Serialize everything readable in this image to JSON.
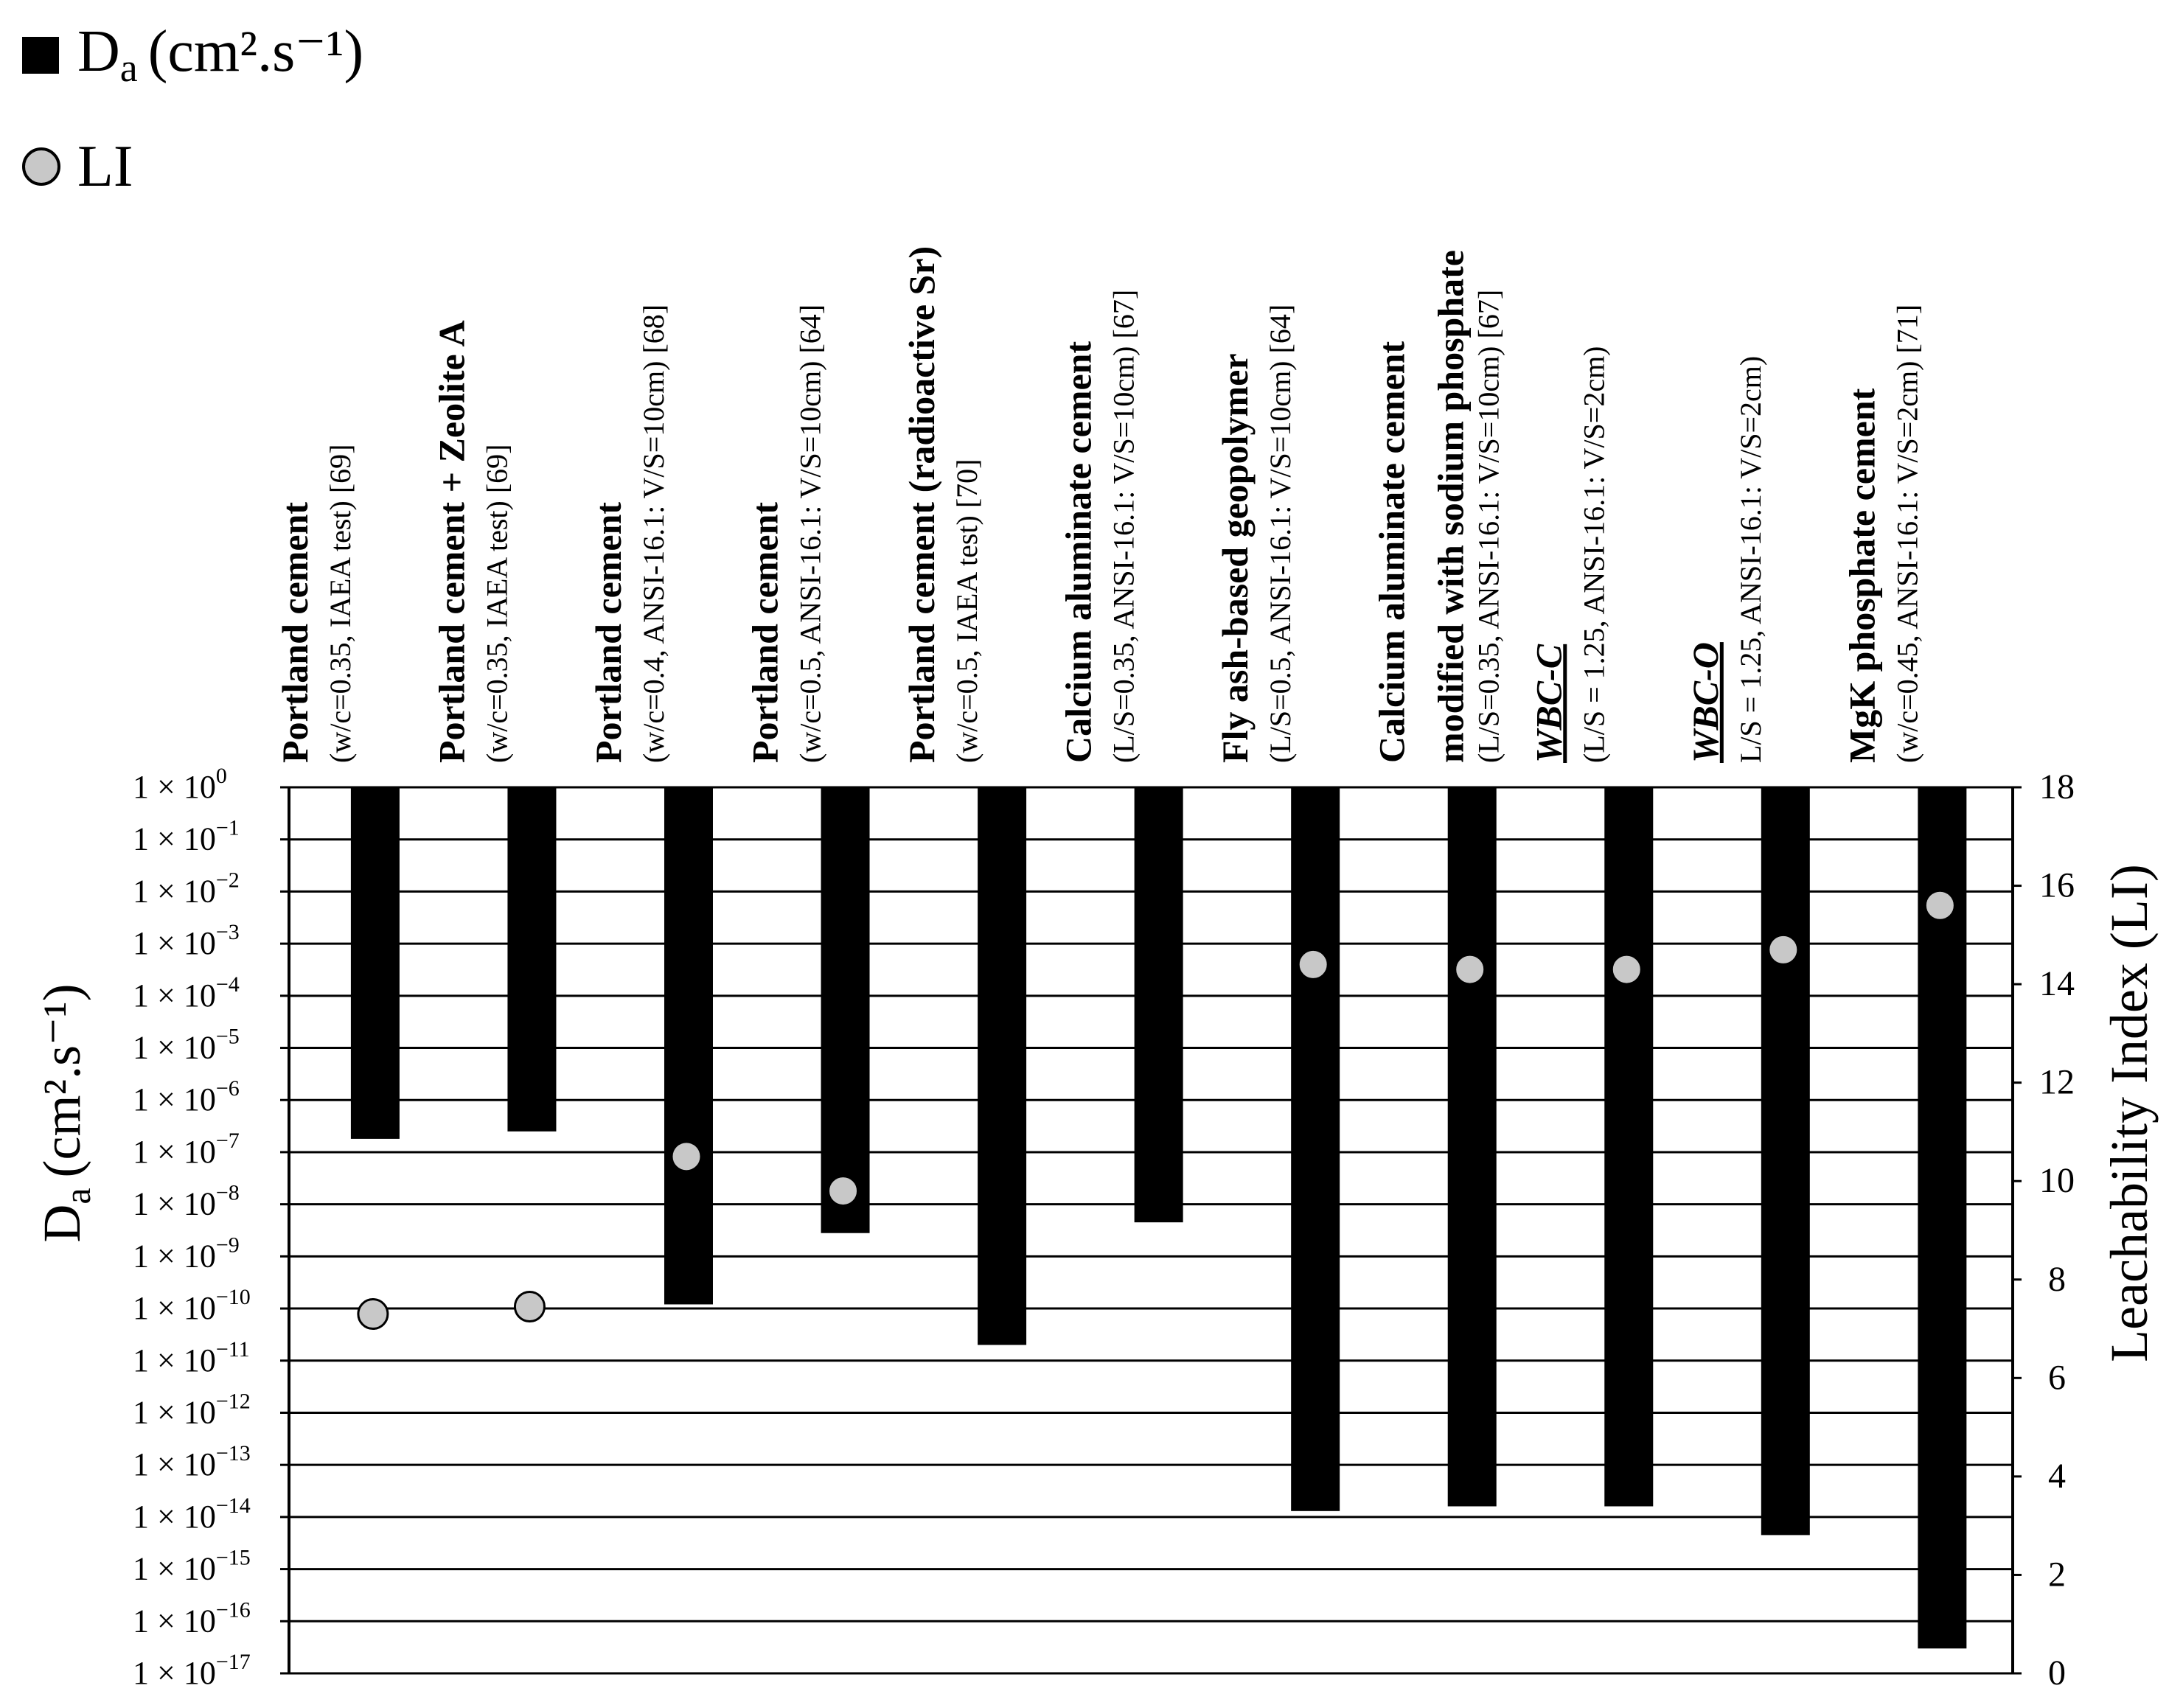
{
  "chart_data": {
    "type": "bar",
    "title": "",
    "legend": {
      "position": "top-left",
      "items": [
        {
          "marker": "square",
          "color": "#000000",
          "label_main": "D",
          "label_sub": "a",
          "label_rest": "(cm².s⁻¹)"
        },
        {
          "marker": "circle",
          "color": "#c8c8c8",
          "label_main": "LI",
          "label_sub": "",
          "label_rest": ""
        }
      ]
    },
    "y_left": {
      "label_main": "D",
      "label_sub": "a",
      "label_rest": "(cm².s⁻¹)",
      "scale": "log",
      "range": [
        1e-17,
        1
      ],
      "ticks": [
        {
          "mantissa": "1 × 10",
          "exp": "0"
        },
        {
          "mantissa": "1 × 10",
          "exp": "−1"
        },
        {
          "mantissa": "1 × 10",
          "exp": "−2"
        },
        {
          "mantissa": "1 × 10",
          "exp": "−3"
        },
        {
          "mantissa": "1 × 10",
          "exp": "−4"
        },
        {
          "mantissa": "1 × 10",
          "exp": "−5"
        },
        {
          "mantissa": "1 × 10",
          "exp": "−6"
        },
        {
          "mantissa": "1 × 10",
          "exp": "−7"
        },
        {
          "mantissa": "1 × 10",
          "exp": "−8"
        },
        {
          "mantissa": "1 × 10",
          "exp": "−9"
        },
        {
          "mantissa": "1 × 10",
          "exp": "−10"
        },
        {
          "mantissa": "1 × 10",
          "exp": "−11"
        },
        {
          "mantissa": "1 × 10",
          "exp": "−12"
        },
        {
          "mantissa": "1 × 10",
          "exp": "−13"
        },
        {
          "mantissa": "1 × 10",
          "exp": "−14"
        },
        {
          "mantissa": "1 × 10",
          "exp": "−15"
        },
        {
          "mantissa": "1 × 10",
          "exp": "−16"
        },
        {
          "mantissa": "1 × 10",
          "exp": "−17"
        }
      ]
    },
    "y_right": {
      "label": "Leachability Index (LI)",
      "range": [
        0,
        18
      ],
      "ticks": [
        "0",
        "2",
        "4",
        "6",
        "8",
        "10",
        "12",
        "14",
        "16",
        "18"
      ]
    },
    "grid": true,
    "categories": [
      {
        "title": "Portland cement",
        "title_style": "bold",
        "detail": "(w/c=0.35, IAEA test) [69]",
        "extra": ""
      },
      {
        "title": "Portland cement + Zeolite A",
        "title_style": "bold",
        "detail": "(w/c=0.35, IAEA test) [69]",
        "extra": ""
      },
      {
        "title": "Portland cement",
        "title_style": "bold",
        "detail": "(w/c=0.4, ANSI-16.1: V/S=10cm) [68]",
        "extra": ""
      },
      {
        "title": "Portland cement",
        "title_style": "bold",
        "detail": "(w/c=0.5, ANSI-16.1: V/S=10cm) [64]",
        "extra": ""
      },
      {
        "title": "Portland cement (radioactive Sr)",
        "title_style": "bold",
        "detail": "(w/c=0.5, IAEA test) [70]",
        "extra": ""
      },
      {
        "title": "Calcium aluminate cement",
        "title_style": "bold",
        "detail": "(L/S=0.35, ANSI-16.1: V/S=10cm) [67]",
        "extra": ""
      },
      {
        "title": "Fly ash-based geopolymer",
        "title_style": "bold",
        "detail": "(L/S=0.5, ANSI-16.1: V/S=10cm) [64]",
        "extra": ""
      },
      {
        "title": "Calcium aluminate cement",
        "title_style": "bold",
        "detail": "modified with sodium phosphate",
        "extra": "(L/S=0.35, ANSI-16.1: V/S=10cm) [67]"
      },
      {
        "title": "WBC-C",
        "title_style": "bold-italic-underline",
        "detail": "(L/S = 1.25, ANSI-16.1: V/S=2cm)",
        "extra": ""
      },
      {
        "title": "WBC-O",
        "title_style": "bold-italic-underline",
        "detail": "L/S = 1.25, ANSI-16.1: V/S=2cm)",
        "extra": ""
      },
      {
        "title": "MgK phosphate cement",
        "title_style": "bold",
        "detail": "(w/c=0.45, ANSI-16.1: V/S=2cm) [71]",
        "extra": ""
      }
    ],
    "series": [
      {
        "name": "Da (cm².s⁻¹)",
        "type": "bar",
        "color": "#000000",
        "values": [
          1.8e-07,
          2.5e-07,
          1.2e-10,
          2.8e-09,
          2e-11,
          4.5e-09,
          1.3e-14,
          1.6e-14,
          1.6e-14,
          4.5e-15,
          3e-17
        ]
      },
      {
        "name": "LI",
        "type": "scatter",
        "color": "#c8c8c8",
        "values": [
          7.3,
          7.45,
          10.5,
          9.8,
          null,
          null,
          14.4,
          14.3,
          14.3,
          14.7,
          15.6
        ]
      }
    ]
  }
}
